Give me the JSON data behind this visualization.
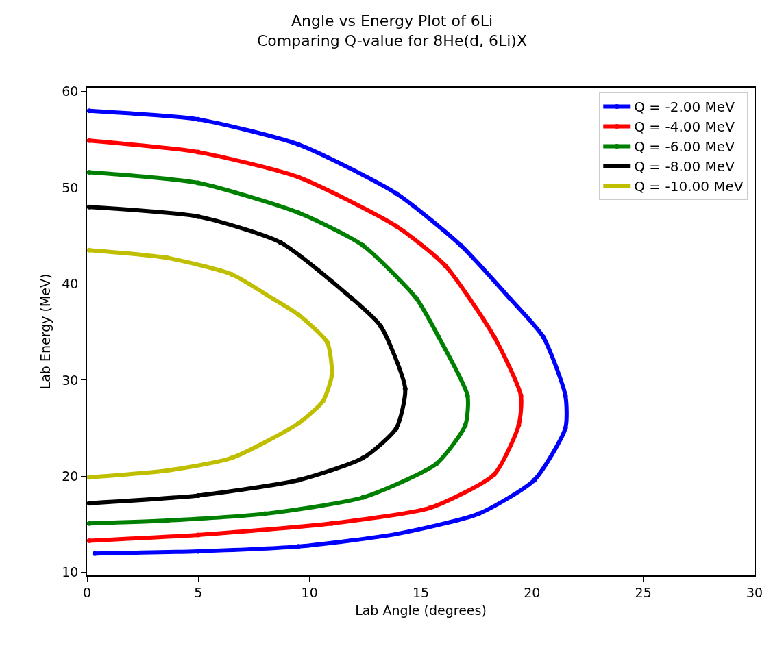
{
  "chart_data": {
    "type": "line",
    "title": "Angle vs Energy Plot of 6Li",
    "subtitle": "Comparing Q-value for 8He(d, 6Li)X",
    "xlabel": "Lab Angle (degrees)",
    "ylabel": "Lab Energy (MeV)",
    "xlim": [
      0,
      30
    ],
    "xticks": [
      0,
      5,
      10,
      15,
      20,
      25,
      30
    ],
    "ylim": [
      9.7,
      60.4
    ],
    "yticks": [
      10,
      20,
      30,
      40,
      50,
      60
    ],
    "grid": false,
    "legend": "top right",
    "marker": "circle",
    "line_style": "solid",
    "series": [
      {
        "name": "Q = -2.00 MeV",
        "color": "#0000ff",
        "x": [
          0.1,
          5.0,
          9.5,
          13.9,
          16.8,
          19.0,
          20.5,
          21.5,
          21.5,
          20.1,
          17.6,
          13.9,
          9.5,
          5.0,
          0.35
        ],
        "values": [
          58.0,
          57.1,
          54.5,
          49.4,
          44.0,
          38.5,
          34.5,
          28.4,
          25.0,
          19.6,
          16.1,
          14.0,
          12.7,
          12.2,
          11.96
        ]
      },
      {
        "name": "Q = -4.00 MeV",
        "color": "#ff0000",
        "x": [
          0.1,
          5.0,
          9.5,
          13.9,
          16.1,
          18.3,
          19.5,
          19.4,
          18.3,
          15.4,
          11.0,
          5.0,
          0.1
        ],
        "values": [
          54.9,
          53.7,
          51.1,
          46.0,
          41.9,
          34.5,
          28.4,
          25.3,
          20.2,
          16.7,
          15.1,
          13.9,
          13.3
        ]
      },
      {
        "name": "Q = -6.00 MeV",
        "color": "#008000",
        "x": [
          0.1,
          5.0,
          9.5,
          12.4,
          14.8,
          15.8,
          17.1,
          17.0,
          15.7,
          12.4,
          8.0,
          3.6,
          0.1
        ],
        "values": [
          51.6,
          50.5,
          47.4,
          44.0,
          38.5,
          34.5,
          28.4,
          25.3,
          21.3,
          17.8,
          16.1,
          15.4,
          15.1
        ]
      },
      {
        "name": "Q = -8.00 MeV",
        "color": "#000000",
        "x": [
          0.1,
          5.0,
          8.7,
          11.9,
          13.2,
          14.3,
          13.9,
          12.4,
          9.5,
          5.0,
          0.1
        ],
        "values": [
          48.0,
          47.0,
          44.3,
          38.5,
          35.6,
          29.1,
          25.0,
          21.9,
          19.6,
          18.0,
          17.2
        ]
      },
      {
        "name": "Q = -10.00 MeV",
        "color": "#bfbf00",
        "x": [
          0.1,
          3.6,
          6.5,
          8.4,
          9.5,
          10.8,
          11.0,
          10.6,
          9.5,
          6.5,
          3.6,
          0.1
        ],
        "values": [
          43.5,
          42.7,
          41.0,
          38.4,
          36.8,
          33.9,
          30.5,
          27.8,
          25.5,
          21.9,
          20.6,
          19.9
        ]
      }
    ]
  }
}
